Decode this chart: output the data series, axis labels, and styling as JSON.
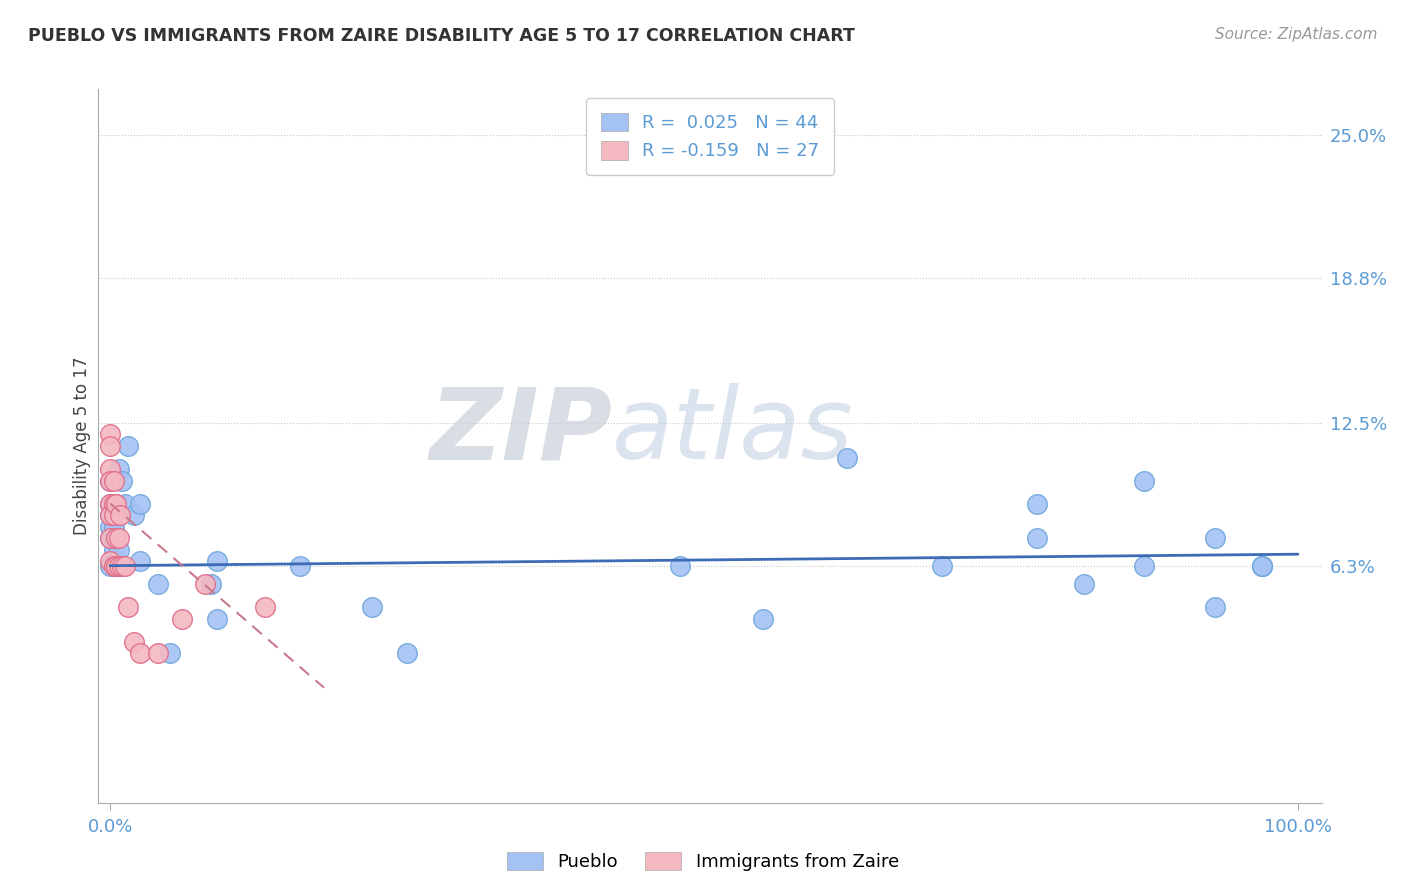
{
  "title": "PUEBLO VS IMMIGRANTS FROM ZAIRE DISABILITY AGE 5 TO 17 CORRELATION CHART",
  "source": "Source: ZipAtlas.com",
  "ylabel": "Disability Age 5 to 17",
  "xlim": [
    -0.01,
    1.02
  ],
  "ylim": [
    -0.04,
    0.27
  ],
  "yticks": [
    0.063,
    0.125,
    0.188,
    0.25
  ],
  "ytick_labels": [
    "6.3%",
    "12.5%",
    "18.8%",
    "25.0%"
  ],
  "xticks": [
    0.0,
    1.0
  ],
  "xtick_labels": [
    "0.0%",
    "100.0%"
  ],
  "legend1_text": "R =  0.025   N = 44",
  "legend2_text": "R = -0.159   N = 27",
  "pueblo_color": "#a4c2f4",
  "pueblo_edge_color": "#6fa8dc",
  "zaire_color": "#f4b8c1",
  "zaire_edge_color": "#e06c8a",
  "trend_pueblo_color": "#3d6bb5",
  "trend_zaire_color": "#c9788a",
  "background_color": "#ffffff",
  "pueblo_points_x": [
    0.0,
    0.0,
    0.0,
    0.0,
    0.0,
    0.0,
    0.003,
    0.003,
    0.003,
    0.003,
    0.003,
    0.005,
    0.005,
    0.005,
    0.007,
    0.007,
    0.01,
    0.012,
    0.015,
    0.02,
    0.025,
    0.025,
    0.04,
    0.05,
    0.085,
    0.09,
    0.09,
    0.16,
    0.22,
    0.25,
    0.48,
    0.55,
    0.62,
    0.7,
    0.78,
    0.82,
    0.87,
    0.93,
    0.97,
    0.93,
    0.97,
    0.87,
    0.78,
    0.97
  ],
  "pueblo_points_y": [
    0.075,
    0.08,
    0.085,
    0.09,
    0.1,
    0.063,
    0.065,
    0.07,
    0.075,
    0.08,
    0.09,
    0.065,
    0.075,
    0.09,
    0.07,
    0.105,
    0.1,
    0.09,
    0.115,
    0.085,
    0.065,
    0.09,
    0.055,
    0.025,
    0.055,
    0.065,
    0.04,
    0.063,
    0.045,
    0.025,
    0.063,
    0.04,
    0.11,
    0.063,
    0.09,
    0.055,
    0.063,
    0.045,
    0.063,
    0.075,
    0.063,
    0.1,
    0.075,
    0.063
  ],
  "zaire_points_x": [
    0.0,
    0.0,
    0.0,
    0.0,
    0.0,
    0.0,
    0.0,
    0.0,
    0.003,
    0.003,
    0.003,
    0.003,
    0.005,
    0.005,
    0.005,
    0.007,
    0.007,
    0.008,
    0.01,
    0.012,
    0.015,
    0.02,
    0.025,
    0.04,
    0.06,
    0.08,
    0.13
  ],
  "zaire_points_y": [
    0.12,
    0.115,
    0.105,
    0.1,
    0.09,
    0.085,
    0.075,
    0.065,
    0.1,
    0.09,
    0.085,
    0.063,
    0.09,
    0.075,
    0.063,
    0.075,
    0.063,
    0.085,
    0.063,
    0.063,
    0.045,
    0.03,
    0.025,
    0.025,
    0.04,
    0.055,
    0.045
  ],
  "pueblo_trend_x": [
    0.0,
    1.0
  ],
  "pueblo_trend_y": [
    0.063,
    0.068
  ],
  "zaire_trend_x": [
    0.0,
    0.18
  ],
  "zaire_trend_y": [
    0.09,
    0.01
  ]
}
